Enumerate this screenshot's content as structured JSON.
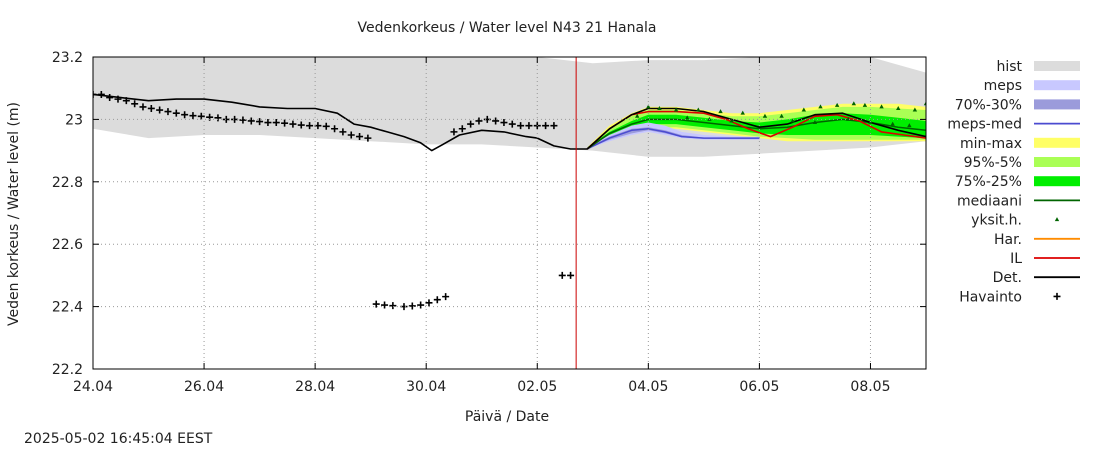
{
  "chart_data": {
    "type": "line",
    "title": "Vedenkorkeus / Water level   N43 21 Hanala",
    "xlabel": "Päivä / Date",
    "ylabel": "Veden korkeus / Water level (m)",
    "ylim": [
      22.2,
      23.2
    ],
    "yticks": [
      "22.2",
      "22.4",
      "22.6",
      "22.8",
      "23",
      "23.2"
    ],
    "xlim": [
      0,
      15
    ],
    "xticks": [
      {
        "x": 0,
        "label": "24.04"
      },
      {
        "x": 2,
        "label": "26.04"
      },
      {
        "x": 4,
        "label": "28.04"
      },
      {
        "x": 6,
        "label": "30.04"
      },
      {
        "x": 8,
        "label": "02.05"
      },
      {
        "x": 10,
        "label": "04.05"
      },
      {
        "x": 12,
        "label": "06.05"
      },
      {
        "x": 14,
        "label": "08.05"
      }
    ],
    "grid": true,
    "legend_position": "right",
    "now_x": 8.7,
    "colors": {
      "hist": "#dcdcdc",
      "meps": "#c8c8ff",
      "p70_30": "#9b9bdb",
      "meps_med": "#4b4bd0",
      "minmax": "#ffff66",
      "p95_5": "#aaff55",
      "p75_25": "#00ee00",
      "mediaani": "#006400",
      "yksit": "#006400",
      "har": "#ff8c00",
      "il": "#dd0000",
      "det": "#000000",
      "havainto": "#000000",
      "now_line": "#cc0000",
      "grid": "#999999"
    },
    "legend": [
      {
        "label": "hist",
        "kind": "band",
        "key": "hist"
      },
      {
        "label": "meps",
        "kind": "band",
        "key": "meps"
      },
      {
        "label": "70%-30%",
        "kind": "band",
        "key": "p70_30"
      },
      {
        "label": "meps-med",
        "kind": "line",
        "key": "meps_med"
      },
      {
        "label": "min-max",
        "kind": "band",
        "key": "minmax"
      },
      {
        "label": "95%-5%",
        "kind": "band",
        "key": "p95_5"
      },
      {
        "label": "75%-25%",
        "kind": "band",
        "key": "p75_25"
      },
      {
        "label": "mediaani",
        "kind": "line",
        "key": "mediaani"
      },
      {
        "label": "yksit.h.",
        "kind": "marker",
        "key": "yksit"
      },
      {
        "label": "Har.",
        "kind": "line",
        "key": "har"
      },
      {
        "label": "IL",
        "kind": "line",
        "key": "il"
      },
      {
        "label": "Det.",
        "kind": "line",
        "key": "det"
      },
      {
        "label": "Havainto",
        "kind": "cross",
        "key": "havainto"
      }
    ],
    "hist_band": {
      "x": [
        0,
        1,
        2,
        3,
        4,
        5,
        6,
        7,
        8,
        9,
        10,
        11,
        12,
        13,
        14,
        15
      ],
      "upper": [
        23.2,
        23.2,
        23.2,
        23.2,
        23.2,
        23.2,
        23.2,
        23.2,
        23.2,
        23.18,
        23.19,
        23.19,
        23.2,
        23.2,
        23.2,
        23.15
      ],
      "lower": [
        22.97,
        22.94,
        22.95,
        22.95,
        22.94,
        22.93,
        22.92,
        22.92,
        22.91,
        22.9,
        22.88,
        22.88,
        22.89,
        22.9,
        22.91,
        22.93
      ]
    },
    "meps_band": {
      "x": [
        8.9,
        9.3,
        9.7,
        10.0,
        10.3,
        10.6,
        11.0,
        11.5,
        12.0
      ],
      "upper": [
        22.91,
        22.95,
        22.98,
        22.99,
        22.98,
        22.96,
        22.95,
        22.945,
        22.945
      ],
      "lower": [
        22.905,
        22.93,
        22.95,
        22.96,
        22.95,
        22.94,
        22.935,
        22.935,
        22.935
      ]
    },
    "meps70_band": {
      "x": [
        8.9,
        9.3,
        9.7,
        10.0,
        10.3,
        10.6,
        11.0,
        11.5,
        12.0
      ],
      "upper": [
        22.91,
        22.945,
        22.97,
        22.975,
        22.965,
        22.95,
        22.942,
        22.94,
        22.94
      ],
      "lower": [
        22.905,
        22.935,
        22.955,
        22.965,
        22.955,
        22.943,
        22.938,
        22.937,
        22.937
      ]
    },
    "meps_med": {
      "x": [
        8.9,
        9.3,
        9.7,
        10.0,
        10.3,
        10.6,
        11.0,
        11.5,
        12.0
      ],
      "y": [
        22.905,
        22.94,
        22.965,
        22.97,
        22.96,
        22.945,
        22.94,
        22.94,
        22.94
      ]
    },
    "minmax_band": {
      "x": [
        8.9,
        9.3,
        9.7,
        10.0,
        10.5,
        11.0,
        11.5,
        12.0,
        12.5,
        13.0,
        13.5,
        14.0,
        14.5,
        15.0
      ],
      "upper": [
        22.91,
        22.98,
        23.02,
        23.04,
        23.04,
        23.03,
        23.02,
        23.02,
        23.03,
        23.04,
        23.05,
        23.05,
        23.05,
        23.04
      ],
      "lower": [
        22.905,
        22.94,
        22.96,
        22.97,
        22.97,
        22.96,
        22.95,
        22.94,
        22.93,
        22.93,
        22.93,
        22.93,
        22.93,
        22.93
      ]
    },
    "p95_5_band": {
      "x": [
        8.9,
        9.3,
        9.7,
        10.0,
        10.5,
        11.0,
        11.5,
        12.0,
        12.5,
        13.0,
        13.5,
        14.0,
        14.5,
        15.0
      ],
      "upper": [
        22.91,
        22.97,
        23.01,
        23.03,
        23.03,
        23.02,
        23.01,
        23.01,
        23.02,
        23.03,
        23.04,
        23.04,
        23.035,
        23.03
      ],
      "lower": [
        22.905,
        22.945,
        22.97,
        22.975,
        22.975,
        22.965,
        22.955,
        22.945,
        22.94,
        22.935,
        22.935,
        22.935,
        22.935,
        22.935
      ]
    },
    "p75_25_band": {
      "x": [
        8.9,
        9.3,
        9.7,
        10.0,
        10.5,
        11.0,
        11.5,
        12.0,
        12.5,
        13.0,
        13.5,
        14.0,
        14.5,
        15.0
      ],
      "upper": [
        22.91,
        22.96,
        22.995,
        23.015,
        23.015,
        23.005,
        22.995,
        22.99,
        23.0,
        23.015,
        23.02,
        23.015,
        23.005,
        22.995
      ],
      "lower": [
        22.905,
        22.95,
        22.975,
        22.985,
        22.985,
        22.975,
        22.965,
        22.955,
        22.95,
        22.95,
        22.95,
        22.95,
        22.945,
        22.94
      ]
    },
    "mediaani": {
      "x": [
        8.9,
        9.3,
        9.7,
        10.0,
        10.5,
        11.0,
        11.5,
        12.0,
        12.5,
        13.0,
        13.5,
        14.0,
        14.5,
        15.0
      ],
      "y": [
        22.905,
        22.955,
        22.985,
        23.0,
        23.0,
        22.99,
        22.98,
        22.97,
        22.975,
        22.99,
        23.0,
        22.99,
        22.975,
        22.965
      ]
    },
    "il": {
      "x": [
        8.9,
        9.3,
        9.7,
        10.0,
        10.5,
        11.0,
        11.4,
        11.8,
        12.2,
        12.6,
        13.0,
        13.4,
        13.8,
        14.2,
        14.6,
        15.0
      ],
      "y": [
        22.905,
        22.97,
        23.015,
        23.025,
        23.025,
        23.02,
        23.0,
        22.97,
        22.945,
        22.975,
        23.01,
        23.015,
        22.995,
        22.96,
        22.95,
        22.94
      ]
    },
    "det": {
      "x": [
        0,
        0.5,
        1.0,
        1.5,
        2.0,
        2.5,
        3.0,
        3.5,
        4.0,
        4.4,
        4.7,
        5.0,
        5.3,
        5.6,
        5.9,
        6.1,
        6.3,
        6.6,
        7.0,
        7.4,
        7.8,
        8.0,
        8.3,
        8.6,
        8.9,
        9.3,
        9.7,
        10.0,
        10.5,
        11.0,
        11.5,
        12.0,
        12.5,
        13.0,
        13.5,
        14.0,
        14.5,
        15.0
      ],
      "y": [
        23.08,
        23.07,
        23.06,
        23.065,
        23.065,
        23.055,
        23.04,
        23.035,
        23.035,
        23.02,
        22.985,
        22.975,
        22.96,
        22.945,
        22.925,
        22.9,
        22.92,
        22.95,
        22.965,
        22.96,
        22.945,
        22.94,
        22.915,
        22.905,
        22.905,
        22.97,
        23.015,
        23.035,
        23.035,
        23.025,
        23.0,
        22.975,
        22.985,
        23.015,
        23.02,
        22.99,
        22.965,
        22.945
      ]
    },
    "havainto": {
      "x": [
        0,
        0.15,
        0.3,
        0.45,
        0.6,
        0.75,
        0.9,
        1.05,
        1.2,
        1.35,
        1.5,
        1.65,
        1.8,
        1.95,
        2.1,
        2.25,
        2.4,
        2.55,
        2.7,
        2.85,
        3.0,
        3.15,
        3.3,
        3.45,
        3.6,
        3.75,
        3.9,
        4.05,
        4.2,
        4.35,
        4.5,
        4.65,
        4.8,
        4.95,
        5.1,
        5.25,
        5.4,
        5.6,
        5.75,
        5.9,
        6.05,
        6.2,
        6.35,
        6.5,
        6.65,
        6.8,
        6.95,
        7.1,
        7.25,
        7.4,
        7.55,
        7.7,
        7.85,
        8.0,
        8.15,
        8.3,
        8.45,
        8.6
      ],
      "y": [
        23.08,
        23.08,
        23.07,
        23.065,
        23.06,
        23.05,
        23.04,
        23.035,
        23.03,
        23.025,
        23.02,
        23.015,
        23.012,
        23.01,
        23.007,
        23.005,
        23.0,
        23.0,
        22.998,
        22.995,
        22.993,
        22.99,
        22.99,
        22.988,
        22.985,
        22.982,
        22.98,
        22.98,
        22.978,
        22.97,
        22.96,
        22.95,
        22.945,
        22.94,
        22.408,
        22.405,
        22.403,
        22.4,
        22.402,
        22.405,
        22.412,
        22.422,
        22.432,
        22.96,
        22.97,
        22.985,
        22.995,
        23.0,
        22.995,
        22.99,
        22.985,
        22.98,
        22.98,
        22.98,
        22.98,
        22.98,
        22.5,
        22.5
      ],
      "note": ""
    },
    "yksit": {
      "x": [
        10.0,
        10.2,
        10.5,
        10.9,
        11.3,
        11.7,
        12.1,
        12.4,
        12.8,
        13.1,
        13.4,
        13.7,
        13.9,
        14.2,
        14.5,
        14.8,
        15.0,
        9.8,
        10.7,
        11.1,
        11.5,
        12.6,
        13.0,
        13.6,
        14.0,
        14.4,
        14.7
      ],
      "y": [
        23.04,
        23.035,
        23.03,
        23.03,
        23.025,
        23.02,
        23.01,
        23.01,
        23.03,
        23.04,
        23.045,
        23.05,
        23.045,
        23.04,
        23.035,
        23.03,
        23.05,
        23.01,
        23.005,
        23.0,
        22.995,
        22.995,
        22.99,
        23.0,
        22.99,
        22.985,
        22.98
      ]
    }
  },
  "footer": {
    "timestamp": "2025-05-02 16:45:04 EEST"
  }
}
